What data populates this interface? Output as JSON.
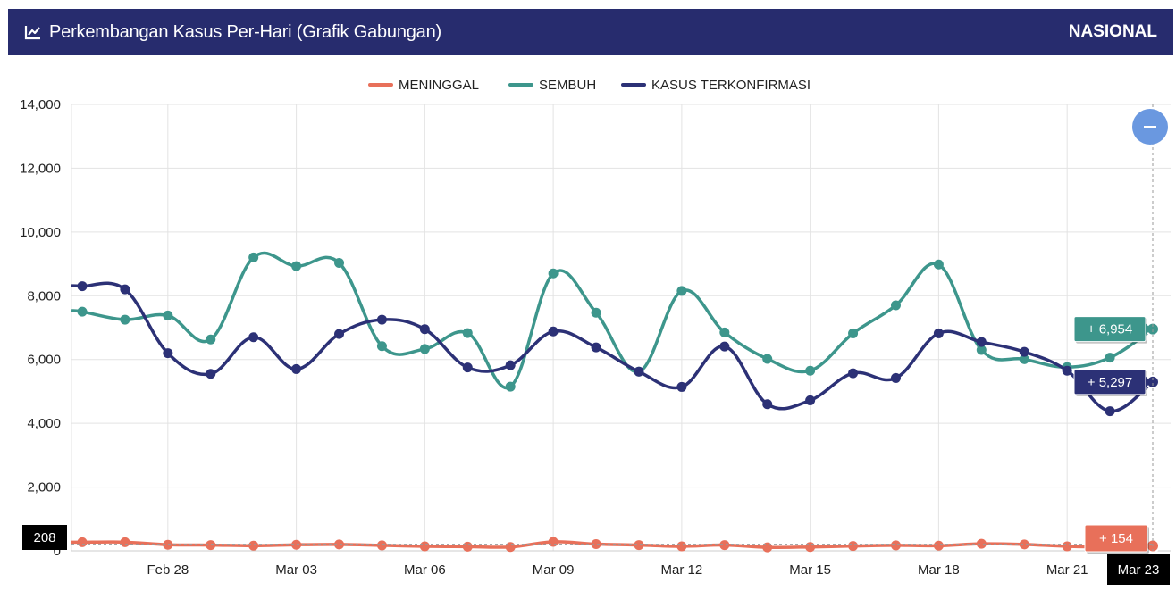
{
  "header": {
    "title": "Perkembangan Kasus Per-Hari (Grafik Gabungan)",
    "region": "NASIONAL",
    "icon": "line-chart-icon",
    "background": "#272c6e"
  },
  "colors": {
    "meninggal": "#e8705a",
    "sembuh": "#3d968c",
    "kasus": "#2c3176",
    "zoom_button": "#6a98e0"
  },
  "chart_data": {
    "type": "line",
    "legend": [
      "MENINGGAL",
      "SEMBUH",
      "KASUS TERKONFIRMASI"
    ],
    "legend_position": "top-center",
    "ylim": [
      0,
      14000
    ],
    "y_ticks": [
      "0",
      "2,000",
      "4,000",
      "6,000",
      "8,000",
      "10,000",
      "12,000",
      "14,000"
    ],
    "x_tick_labels": [
      "Feb 28",
      "Mar 03",
      "Mar 06",
      "Mar 09",
      "Mar 12",
      "Mar 15",
      "Mar 18",
      "Mar 21"
    ],
    "x": [
      "Feb 26",
      "Feb 27",
      "Feb 28",
      "Mar 01",
      "Mar 02",
      "Mar 03",
      "Mar 04",
      "Mar 05",
      "Mar 06",
      "Mar 07",
      "Mar 08",
      "Mar 09",
      "Mar 10",
      "Mar 11",
      "Mar 12",
      "Mar 13",
      "Mar 14",
      "Mar 15",
      "Mar 16",
      "Mar 17",
      "Mar 18",
      "Mar 19",
      "Mar 20",
      "Mar 21",
      "Mar 22",
      "Mar 23"
    ],
    "grid": true,
    "series": [
      {
        "name": "MENINGGAL",
        "values": [
          270,
          270,
          190,
          180,
          160,
          190,
          200,
          170,
          140,
          130,
          120,
          280,
          210,
          180,
          140,
          180,
          110,
          120,
          150,
          170,
          160,
          220,
          200,
          140,
          120,
          154
        ]
      },
      {
        "name": "SEMBUH",
        "values": [
          7500,
          7250,
          7380,
          6630,
          9200,
          8930,
          9030,
          6420,
          6330,
          6830,
          5150,
          8700,
          7470,
          5620,
          8150,
          6850,
          6020,
          5650,
          6820,
          7700,
          8980,
          6300,
          6010,
          5760,
          6060,
          6954
        ]
      },
      {
        "name": "KASUS TERKONFIRMASI",
        "values": [
          8300,
          8200,
          6200,
          5550,
          6700,
          5700,
          6800,
          7250,
          6950,
          5750,
          5820,
          6880,
          6380,
          5620,
          5140,
          6410,
          4600,
          4720,
          5570,
          5420,
          6820,
          6550,
          6240,
          5650,
          4380,
          5297
        ]
      }
    ],
    "tooltips": {
      "sembuh": "+ 6,954",
      "kasus": "+ 5,297",
      "meninggal": "+ 154",
      "x_label": "Mar 23",
      "y_label": "208"
    }
  }
}
